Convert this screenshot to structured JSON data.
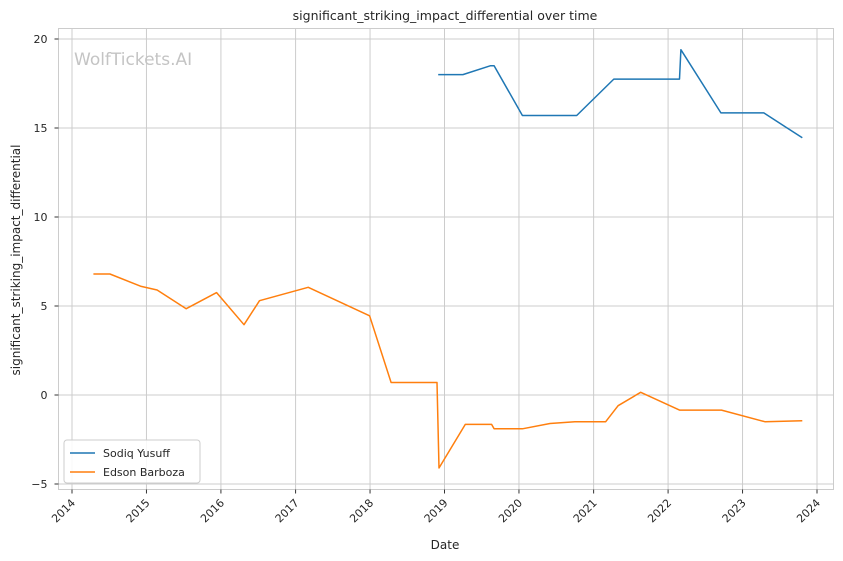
{
  "chart_data": {
    "type": "line",
    "title": "significant_striking_impact_differential over time",
    "xlabel": "Date",
    "ylabel": "significant_striking_impact_differential",
    "watermark": "WolfTickets.AI",
    "x_range": [
      "2014-01-01",
      "2024-01-01"
    ],
    "ylim": [
      -5.1,
      20.6
    ],
    "x_ticks": [
      "2014",
      "2015",
      "2016",
      "2017",
      "2018",
      "2019",
      "2020",
      "2021",
      "2022",
      "2023",
      "2024"
    ],
    "y_ticks": [
      -5,
      0,
      5,
      10,
      15,
      20
    ],
    "grid": true,
    "legend_position": "lower-left",
    "series": [
      {
        "name": "Sodiq Yusuff",
        "color": "#1f77b4",
        "points": [
          [
            "2018-12-01",
            18.0
          ],
          [
            "2019-04-01",
            18.0
          ],
          [
            "2019-08-15",
            18.5
          ],
          [
            "2019-09-01",
            18.5
          ],
          [
            "2020-01-18",
            15.7
          ],
          [
            "2020-10-10",
            15.7
          ],
          [
            "2021-04-10",
            17.75
          ],
          [
            "2022-02-26",
            17.75
          ],
          [
            "2022-03-05",
            19.4
          ],
          [
            "2022-09-17",
            15.85
          ],
          [
            "2023-04-15",
            15.85
          ],
          [
            "2023-10-21",
            14.45
          ]
        ]
      },
      {
        "name": "Edson Barboza",
        "color": "#ff7f0e",
        "points": [
          [
            "2014-04-16",
            6.8
          ],
          [
            "2014-07-06",
            6.8
          ],
          [
            "2014-12-06",
            6.1
          ],
          [
            "2015-02-22",
            5.9
          ],
          [
            "2015-07-15",
            4.85
          ],
          [
            "2015-12-11",
            5.75
          ],
          [
            "2016-04-23",
            3.95
          ],
          [
            "2016-07-08",
            5.3
          ],
          [
            "2017-03-04",
            6.05
          ],
          [
            "2017-12-30",
            4.45
          ],
          [
            "2018-04-14",
            0.7
          ],
          [
            "2018-11-25",
            0.7
          ],
          [
            "2018-12-05",
            -4.1
          ],
          [
            "2019-04-13",
            -1.65
          ],
          [
            "2019-08-20",
            -1.65
          ],
          [
            "2019-09-01",
            -1.9
          ],
          [
            "2020-01-18",
            -1.9
          ],
          [
            "2020-06-01",
            -1.6
          ],
          [
            "2020-10-01",
            -1.5
          ],
          [
            "2021-03-01",
            -1.5
          ],
          [
            "2021-05-01",
            -0.6
          ],
          [
            "2021-08-20",
            0.15
          ],
          [
            "2022-02-26",
            -0.85
          ],
          [
            "2022-09-20",
            -0.85
          ],
          [
            "2023-04-20",
            -1.5
          ],
          [
            "2023-10-21",
            -1.45
          ]
        ]
      }
    ]
  }
}
